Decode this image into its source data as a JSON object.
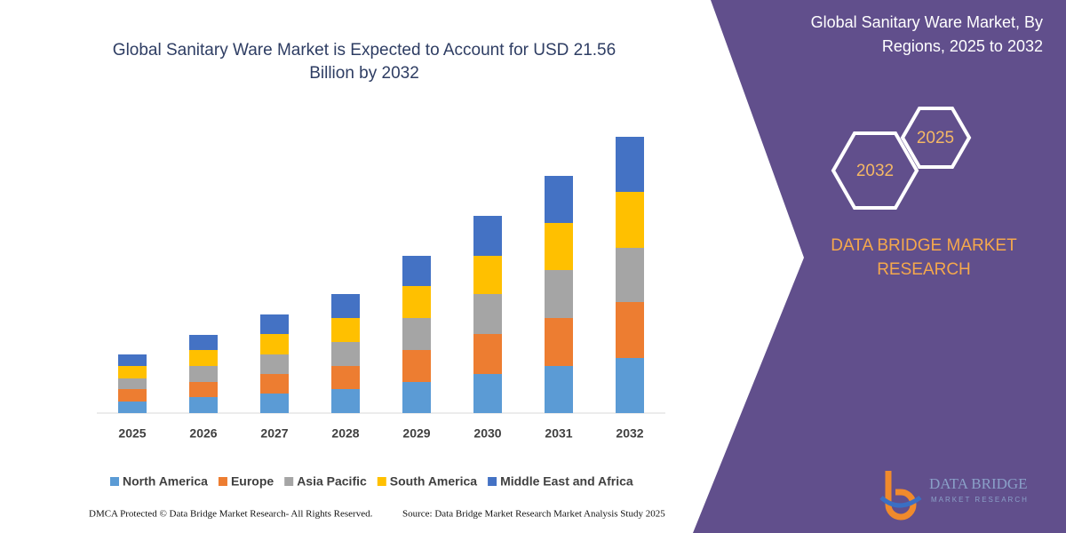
{
  "chart_data": {
    "type": "stacked_bar",
    "title": "Global Sanitary Ware Market is Expected to Account for USD 21.56 Billion by 2032",
    "categories": [
      "2025",
      "2026",
      "2027",
      "2028",
      "2029",
      "2030",
      "2031",
      "2032"
    ],
    "series": [
      {
        "name": "North America",
        "color": "#5b9bd5",
        "values": [
          13,
          18,
          22,
          27,
          35,
          44,
          53,
          62
        ]
      },
      {
        "name": "Europe",
        "color": "#ed7d31",
        "values": [
          14,
          17,
          22,
          26,
          36,
          45,
          54,
          63
        ]
      },
      {
        "name": "Asia Pacific",
        "color": "#a5a5a5",
        "values": [
          12,
          18,
          22,
          27,
          36,
          45,
          54,
          61
        ]
      },
      {
        "name": "South America",
        "color": "#ffc000",
        "values": [
          14,
          18,
          23,
          27,
          36,
          43,
          53,
          63
        ]
      },
      {
        "name": "Middle East and Africa",
        "color": "#4472c4",
        "values": [
          13,
          17,
          22,
          27,
          34,
          45,
          53,
          62
        ]
      }
    ],
    "ylim": [
      0,
      320
    ]
  },
  "panel": {
    "title": "Global Sanitary Ware Market, By Regions, 2025 to 2032",
    "hex_back": "2032",
    "hex_front": "2025",
    "brand": "DATA BRIDGE MARKET RESEARCH",
    "logo_top": "DATA BRIDGE",
    "logo_bottom": "MARKET RESEARCH"
  },
  "footer": {
    "left": "DMCA Protected © Data Bridge Market Research-  All Rights Reserved.",
    "right": "Source: Data Bridge Market Research  Market Analysis Study 2025"
  }
}
